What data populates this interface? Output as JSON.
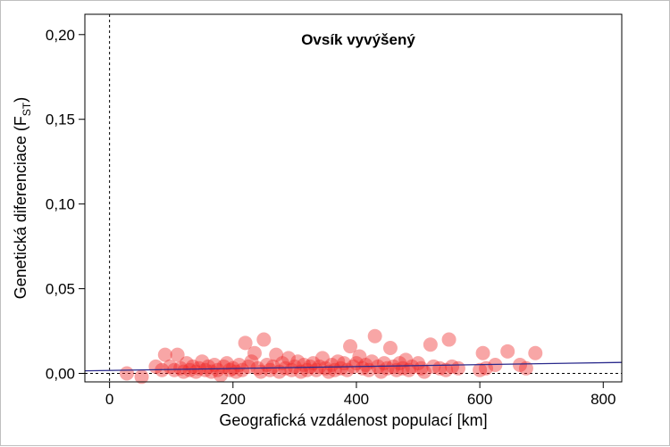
{
  "chart_data": {
    "type": "scatter",
    "title": "Ovsík vyvýšený",
    "xlabel": "Geografická vzdálenost populací [km]",
    "ylabel_main": "Genetická diferenciace (F",
    "ylabel_sub": "ST",
    "ylabel_close": ")",
    "xlim": [
      -40,
      830
    ],
    "ylim": [
      -0.005,
      0.212
    ],
    "x_ticks": [
      0,
      200,
      400,
      600,
      800
    ],
    "x_tick_labels": [
      "0",
      "200",
      "400",
      "600",
      "800"
    ],
    "y_ticks": [
      0,
      0.05,
      0.1,
      0.15,
      0.2
    ],
    "y_tick_labels": [
      "0,00",
      "0,05",
      "0,10",
      "0,15",
      "0,20"
    ],
    "grid": false,
    "reference_lines": [
      {
        "axis": "x",
        "value": 0,
        "style": "dashed"
      },
      {
        "axis": "y",
        "value": 0,
        "style": "dashed"
      }
    ],
    "regression_line": {
      "x": [
        -40,
        830
      ],
      "y": [
        0.0015,
        0.0065
      ],
      "color": "#2a2a8c"
    },
    "point_color": "#ee2a2a",
    "points": [
      [
        28,
        0.0
      ],
      [
        52,
        -0.002
      ],
      [
        75,
        0.004
      ],
      [
        85,
        0.002
      ],
      [
        90,
        0.011
      ],
      [
        98,
        0.004
      ],
      [
        105,
        0.002
      ],
      [
        110,
        0.011
      ],
      [
        115,
        0.003
      ],
      [
        120,
        0.001
      ],
      [
        125,
        0.006
      ],
      [
        130,
        0.002
      ],
      [
        135,
        0.004
      ],
      [
        140,
        0.001
      ],
      [
        145,
        0.003
      ],
      [
        150,
        0.007
      ],
      [
        155,
        0.002
      ],
      [
        160,
        0.004
      ],
      [
        165,
        0.001
      ],
      [
        170,
        0.005
      ],
      [
        175,
        0.002
      ],
      [
        180,
        -0.001
      ],
      [
        185,
        0.004
      ],
      [
        190,
        0.006
      ],
      [
        195,
        0.002
      ],
      [
        200,
        0.003
      ],
      [
        205,
        0.001
      ],
      [
        210,
        0.005
      ],
      [
        215,
        0.002
      ],
      [
        220,
        0.018
      ],
      [
        225,
        0.004
      ],
      [
        230,
        0.007
      ],
      [
        235,
        0.012
      ],
      [
        240,
        0.003
      ],
      [
        245,
        0.001
      ],
      [
        250,
        0.02
      ],
      [
        255,
        0.005
      ],
      [
        260,
        0.002
      ],
      [
        265,
        0.004
      ],
      [
        270,
        0.011
      ],
      [
        275,
        0.001
      ],
      [
        280,
        0.006
      ],
      [
        285,
        0.003
      ],
      [
        290,
        0.009
      ],
      [
        295,
        0.002
      ],
      [
        300,
        0.004
      ],
      [
        305,
        0.007
      ],
      [
        310,
        0.001
      ],
      [
        315,
        0.005
      ],
      [
        320,
        0.002
      ],
      [
        325,
        0.004
      ],
      [
        330,
        0.006
      ],
      [
        335,
        0.002
      ],
      [
        340,
        0.004
      ],
      [
        345,
        0.009
      ],
      [
        350,
        0.003
      ],
      [
        355,
        0.001
      ],
      [
        360,
        0.005
      ],
      [
        365,
        0.002
      ],
      [
        370,
        0.007
      ],
      [
        375,
        0.003
      ],
      [
        380,
        0.006
      ],
      [
        385,
        0.002
      ],
      [
        390,
        0.016
      ],
      [
        395,
        0.004
      ],
      [
        400,
        0.006
      ],
      [
        405,
        0.01
      ],
      [
        410,
        0.003
      ],
      [
        415,
        0.005
      ],
      [
        420,
        0.002
      ],
      [
        425,
        0.007
      ],
      [
        430,
        0.022
      ],
      [
        435,
        0.004
      ],
      [
        440,
        0.001
      ],
      [
        445,
        0.006
      ],
      [
        450,
        0.003
      ],
      [
        455,
        0.015
      ],
      [
        460,
        0.004
      ],
      [
        465,
        0.002
      ],
      [
        470,
        0.006
      ],
      [
        475,
        0.003
      ],
      [
        480,
        0.008
      ],
      [
        485,
        0.002
      ],
      [
        490,
        0.004
      ],
      [
        500,
        0.006
      ],
      [
        505,
        0.003
      ],
      [
        510,
        0.001
      ],
      [
        520,
        0.017
      ],
      [
        525,
        0.004
      ],
      [
        535,
        0.003
      ],
      [
        545,
        0.002
      ],
      [
        550,
        0.02
      ],
      [
        555,
        0.004
      ],
      [
        565,
        0.003
      ],
      [
        600,
        0.002
      ],
      [
        605,
        0.012
      ],
      [
        610,
        0.003
      ],
      [
        625,
        0.005
      ],
      [
        645,
        0.013
      ],
      [
        665,
        0.005
      ],
      [
        675,
        0.003
      ],
      [
        690,
        0.012
      ]
    ]
  }
}
